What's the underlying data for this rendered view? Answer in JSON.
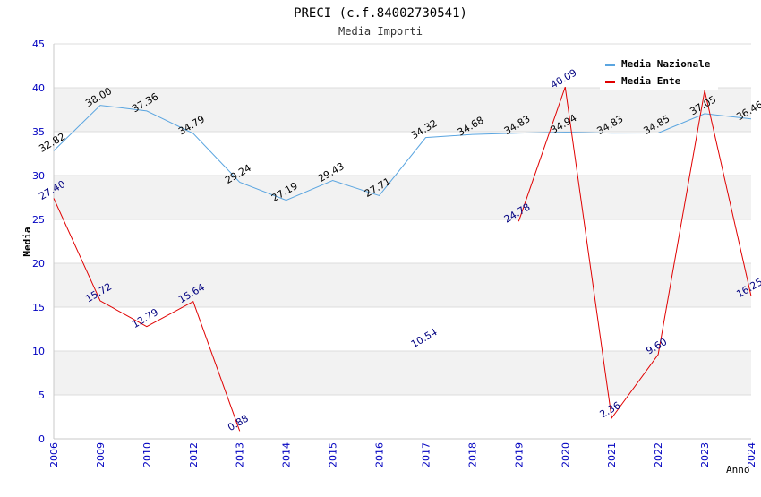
{
  "chart_data": {
    "type": "line",
    "title": "PRECI (c.f.84002730541)",
    "subtitle": "Media Importi",
    "xlabel": "Anno",
    "ylabel": "Media",
    "categories": [
      "2006",
      "2009",
      "2010",
      "2012",
      "2013",
      "2014",
      "2015",
      "2016",
      "2017",
      "2018",
      "2019",
      "2020",
      "2021",
      "2022",
      "2023",
      "2024"
    ],
    "ylim": [
      0,
      45
    ],
    "yticks": [
      0,
      5,
      10,
      15,
      20,
      25,
      30,
      35,
      40,
      45
    ],
    "grid": true,
    "legend_position": "top-right",
    "series": [
      {
        "name": "Media Nazionale",
        "color": "#5aa5e0",
        "label_color": "#000000",
        "values": [
          32.82,
          38.0,
          37.36,
          34.79,
          29.24,
          27.19,
          29.43,
          27.71,
          34.32,
          34.68,
          34.83,
          34.94,
          34.83,
          34.85,
          37.05,
          36.46
        ],
        "labels": [
          "32.82",
          "38.00",
          "37.36",
          "34.79",
          "29.24",
          "27.19",
          "29.43",
          "27.71",
          "34.32",
          "34.68",
          "34.83",
          "34.94",
          "34.83",
          "34.85",
          "37.05",
          "36.46"
        ]
      },
      {
        "name": "Media Ente",
        "color": "#e00000",
        "label_color": "#000080",
        "values": [
          27.4,
          15.72,
          12.79,
          15.64,
          0.88,
          null,
          null,
          null,
          10.54,
          null,
          24.78,
          40.09,
          2.36,
          9.6,
          39.69,
          16.25
        ],
        "labels": [
          "27.40",
          "15.72",
          "12.79",
          "15.64",
          "0.88",
          null,
          null,
          null,
          "10.54",
          null,
          "24.78",
          "40.09",
          "2.36",
          "9.60",
          null,
          "16.25"
        ]
      }
    ]
  },
  "colors": {
    "axis_tick_label": "#0000c0",
    "band": "#f2f2f2",
    "grid": "#dcdcdc",
    "axis": "#c8c8c8",
    "title": "#000000",
    "subtitle": "#333333"
  }
}
